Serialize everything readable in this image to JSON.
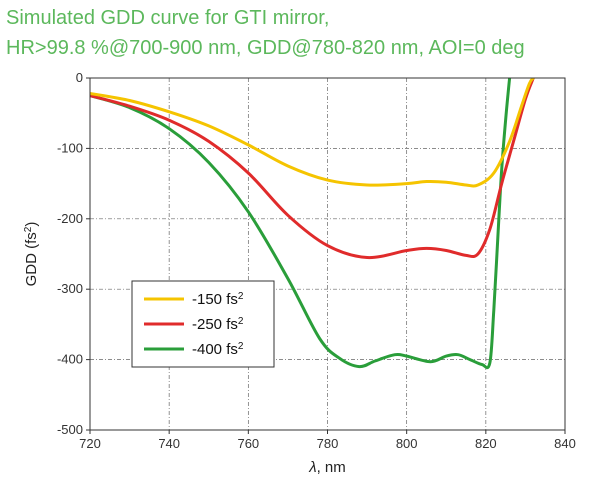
{
  "chart_data": {
    "type": "line",
    "title_line1": "Simulated GDD curve for GTI mirror,",
    "title_line2": "HR>99.8 %@700-900 nm, GDD@780-820 nm, AOI=0 deg",
    "xlabel_symbol": "λ",
    "xlabel_unit": ", nm",
    "ylabel_main": "GDD (fs",
    "ylabel_sup": "2",
    "ylabel_close": ")",
    "xlim": [
      720,
      840
    ],
    "ylim": [
      -500,
      0
    ],
    "xticks": [
      720,
      740,
      760,
      780,
      800,
      820,
      840
    ],
    "yticks": [
      0,
      -100,
      -200,
      -300,
      -400,
      -500
    ],
    "grid": true,
    "legend_position": "bottom-left",
    "series": [
      {
        "name": "-150 fs",
        "sup": "2",
        "color": "#f5c400",
        "x": [
          720,
          730,
          740,
          750,
          760,
          770,
          780,
          790,
          800,
          805,
          810,
          815,
          818,
          822,
          826,
          829,
          831,
          832
        ],
        "y": [
          -22,
          -32,
          -48,
          -68,
          -95,
          -125,
          -145,
          -152,
          -150,
          -147,
          -148,
          -152,
          -152,
          -135,
          -90,
          -40,
          -8,
          0
        ]
      },
      {
        "name": "-250 fs",
        "sup": "2",
        "color": "#e02b2b",
        "x": [
          720,
          730,
          740,
          750,
          760,
          770,
          780,
          790,
          800,
          805,
          810,
          815,
          818,
          821,
          824,
          827,
          830,
          832
        ],
        "y": [
          -25,
          -40,
          -60,
          -90,
          -135,
          -195,
          -238,
          -255,
          -245,
          -242,
          -245,
          -252,
          -250,
          -215,
          -150,
          -90,
          -30,
          0
        ]
      },
      {
        "name": "-400 fs",
        "sup": "2",
        "color": "#2a9e3a",
        "x": [
          720,
          730,
          740,
          750,
          760,
          770,
          778,
          783,
          788,
          792,
          797,
          800,
          806,
          810,
          813,
          816,
          819,
          821,
          822,
          823,
          824,
          825,
          826
        ],
        "y": [
          -25,
          -42,
          -72,
          -120,
          -190,
          -285,
          -370,
          -398,
          -410,
          -402,
          -393,
          -395,
          -403,
          -395,
          -393,
          -400,
          -407,
          -405,
          -330,
          -230,
          -130,
          -60,
          0
        ]
      }
    ]
  }
}
